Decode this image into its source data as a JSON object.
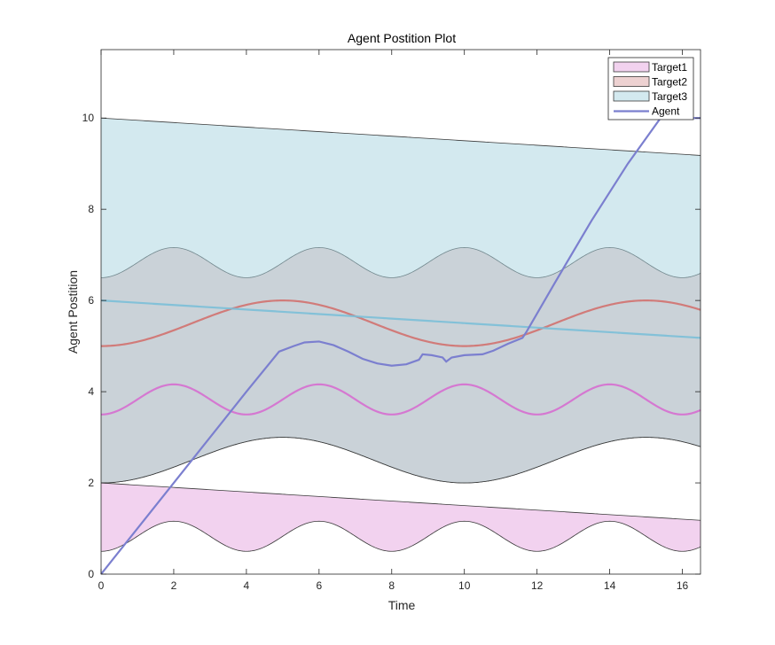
{
  "chart_data": {
    "type": "area",
    "title": "Agent Postition Plot",
    "xlabel": "Time",
    "ylabel": "Agent Postition",
    "xlim": [
      0,
      16.5
    ],
    "ylim": [
      0,
      11.5
    ],
    "xticks": [
      0,
      2,
      4,
      6,
      8,
      10,
      12,
      14,
      16
    ],
    "yticks": [
      0,
      2,
      4,
      6,
      8,
      10
    ],
    "grid": false,
    "legend_position": "top-right",
    "series": [
      {
        "name": "Target1",
        "kind": "band",
        "fill": "#e6a6e0",
        "fill_opacity": 0.5,
        "lower": {
          "mean": 0.83,
          "amplitude": 0.33,
          "period": 4,
          "phase_peak": 2
        },
        "upper": {
          "start": 2.0,
          "end_at_x_16_5": 1.18
        },
        "center": {
          "mean": 3.83,
          "amplitude": 0.33,
          "period": 4,
          "phase_peak": 2,
          "color": "#d66ed0"
        }
      },
      {
        "name": "Target2",
        "kind": "band",
        "fill": "#d79a9a",
        "fill_opacity": 0.45,
        "lower": {
          "mean": 2.5,
          "amplitude": 0.5,
          "period": 10,
          "phase_peak": 5
        },
        "upper": {
          "mean": 6.83,
          "amplitude": 0.33,
          "period": 4,
          "phase_peak": 2
        },
        "center": {
          "mean": 5.5,
          "amplitude": 0.5,
          "period": 10,
          "phase_peak": 5,
          "color": "#d2716f"
        }
      },
      {
        "name": "Target3",
        "kind": "band",
        "fill": "#a8d3e0",
        "fill_opacity": 0.5,
        "lower": {
          "mean": 2.5,
          "amplitude": 0.5,
          "period": 10,
          "phase_peak": 5
        },
        "upper": {
          "start": 10.0,
          "end_at_x_16_5": 9.18
        },
        "center": {
          "start": 6.0,
          "end_at_x_16_5": 5.18,
          "color": "#7bbfd8"
        }
      },
      {
        "name": "Agent",
        "kind": "line",
        "color": "#7b7fcf",
        "points": [
          [
            0,
            0
          ],
          [
            2,
            2.0
          ],
          [
            4,
            4.0
          ],
          [
            4.9,
            4.88
          ],
          [
            5.3,
            5.0
          ],
          [
            5.6,
            5.08
          ],
          [
            6.0,
            5.1
          ],
          [
            6.4,
            5.02
          ],
          [
            6.8,
            4.88
          ],
          [
            7.2,
            4.72
          ],
          [
            7.6,
            4.62
          ],
          [
            8.0,
            4.57
          ],
          [
            8.4,
            4.6
          ],
          [
            8.75,
            4.7
          ],
          [
            8.85,
            4.82
          ],
          [
            9.1,
            4.8
          ],
          [
            9.4,
            4.75
          ],
          [
            9.5,
            4.66
          ],
          [
            9.65,
            4.75
          ],
          [
            10.0,
            4.8
          ],
          [
            10.5,
            4.82
          ],
          [
            10.8,
            4.9
          ],
          [
            11.2,
            5.05
          ],
          [
            11.6,
            5.18
          ],
          [
            11.7,
            5.3
          ],
          [
            12.5,
            6.4
          ],
          [
            13.5,
            7.75
          ],
          [
            14.5,
            9.0
          ],
          [
            15.4,
            10.0
          ],
          [
            16.5,
            10.0
          ]
        ]
      }
    ],
    "legend": [
      "Target1",
      "Target2",
      "Target3",
      "Agent"
    ]
  }
}
